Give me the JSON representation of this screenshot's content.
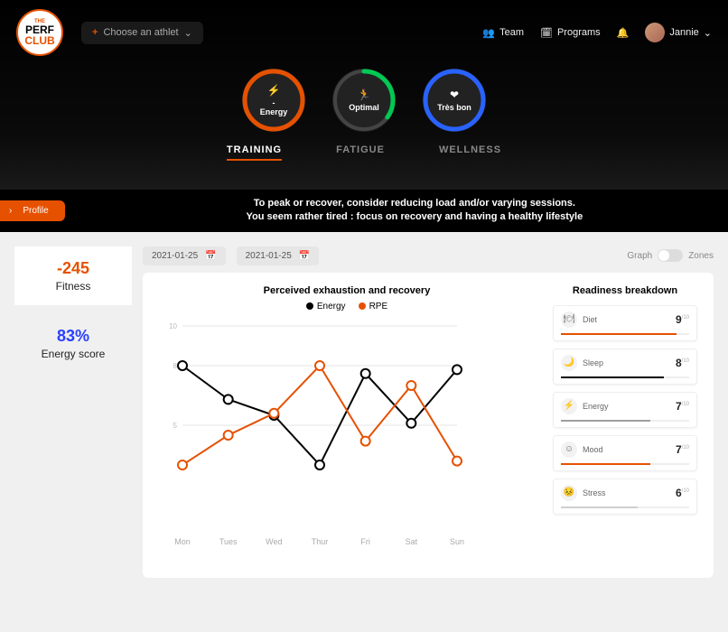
{
  "brand": {
    "l1": "THE",
    "l2": "PERF",
    "l3": "CLUB"
  },
  "athlete_picker": {
    "label": "Choose an athlet"
  },
  "nav": {
    "team": "Team",
    "programs": "Programs",
    "user": "Jannie"
  },
  "rings": [
    {
      "icon": "⚡",
      "value": "-",
      "label": "Energy",
      "stroke": "#e65100",
      "progress": 1.0
    },
    {
      "icon": "🏃",
      "value": "",
      "label": "Optimal",
      "stroke": "#00c853",
      "progress": 0.35
    },
    {
      "icon": "❤",
      "value": "",
      "label": "Très bon",
      "stroke": "#2962ff",
      "progress": 1.0
    }
  ],
  "tabs": [
    {
      "label": "TRAINING",
      "active": true
    },
    {
      "label": "FATIGUE",
      "active": false
    },
    {
      "label": "WELLNESS",
      "active": false
    }
  ],
  "profile_btn": "Profile",
  "alert": {
    "l1": "To peak or recover, consider reducing load and/or varying sessions.",
    "l2": "You seem rather tired : focus on recovery and having a healthy lifestyle"
  },
  "metrics": {
    "fitness": {
      "value": "-245",
      "label": "Fitness",
      "color": "#e65100"
    },
    "energy": {
      "value": "83%",
      "label": "Energy score",
      "color": "#2a3fff"
    }
  },
  "dates": {
    "from": "2021-01-25",
    "to": "2021-01-25"
  },
  "toggle": {
    "left": "Graph",
    "right": "Zones"
  },
  "chart": {
    "title": "Perceived exhaustion and recovery",
    "legend": [
      {
        "label": "Energy",
        "color": "#000000"
      },
      {
        "label": "RPE",
        "color": "#e65100"
      }
    ],
    "categories": [
      "Mon",
      "Tues",
      "Wed",
      "Thur",
      "Fri",
      "Sat",
      "Sun"
    ],
    "series": [
      {
        "name": "Energy",
        "color": "#000000",
        "values": [
          8,
          6.3,
          5.5,
          3,
          7.6,
          5.1,
          7.8
        ]
      },
      {
        "name": "RPE",
        "color": "#e65100",
        "values": [
          3,
          4.5,
          5.6,
          8,
          4.2,
          7,
          3.2
        ]
      }
    ],
    "ylim": [
      0,
      10
    ],
    "yticks": [
      5,
      8,
      10
    ],
    "grid_color": "#e6e6e6",
    "bg": "#ffffff",
    "marker_radius": 5,
    "line_width": 2
  },
  "breakdown": {
    "title": "Readiness breakdown",
    "items": [
      {
        "icon": "🍽",
        "label": "Diet",
        "score": "9",
        "sup": "/10",
        "fill": 0.9,
        "color": "#e65100"
      },
      {
        "icon": "🌙",
        "label": "Sleep",
        "score": "8",
        "sup": "/10",
        "fill": 0.8,
        "color": "#000000"
      },
      {
        "icon": "⚡",
        "label": "Energy",
        "score": "7",
        "sup": "/10",
        "fill": 0.7,
        "color": "#9e9e9e"
      },
      {
        "icon": "☺",
        "label": "Mood",
        "score": "7",
        "sup": "/10",
        "fill": 0.7,
        "color": "#e65100"
      },
      {
        "icon": "😣",
        "label": "Stress",
        "score": "6",
        "sup": "/10",
        "fill": 0.6,
        "color": "#cfcfcf"
      }
    ]
  }
}
